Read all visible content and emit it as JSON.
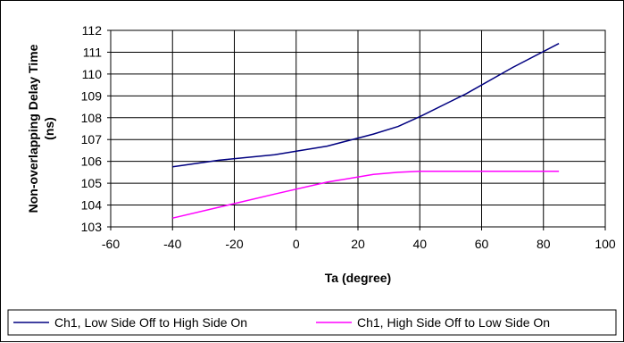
{
  "chart_data": {
    "type": "line",
    "title": "",
    "xlabel": "Ta (degree)",
    "ylabel_line1": "Non-overlapping Delay Time",
    "ylabel_line2": "(ns)",
    "xlim": [
      -60,
      100
    ],
    "ylim": [
      103,
      112
    ],
    "xticks": [
      "-60",
      "-40",
      "-20",
      "0",
      "20",
      "40",
      "60",
      "80",
      "100"
    ],
    "yticks": [
      "103",
      "104",
      "105",
      "106",
      "107",
      "108",
      "109",
      "110",
      "111",
      "112"
    ],
    "grid": true,
    "legend_position": "bottom",
    "series": [
      {
        "name": "Ch1, Low Side Off to High Side On",
        "color": "#000080",
        "x": [
          -40,
          -25,
          -7,
          10,
          25,
          33,
          40,
          55,
          70,
          85
        ],
        "y": [
          105.75,
          106.05,
          106.3,
          106.7,
          107.25,
          107.6,
          108.05,
          109.1,
          110.3,
          111.4
        ]
      },
      {
        "name": "Ch1, High Side Off to Low Side On",
        "color": "#ff00ff",
        "x": [
          -40,
          -25,
          -7,
          10,
          25,
          33,
          40,
          55,
          70,
          85
        ],
        "y": [
          103.4,
          103.9,
          104.5,
          105.05,
          105.4,
          105.5,
          105.55,
          105.55,
          105.55,
          105.55
        ]
      }
    ]
  }
}
